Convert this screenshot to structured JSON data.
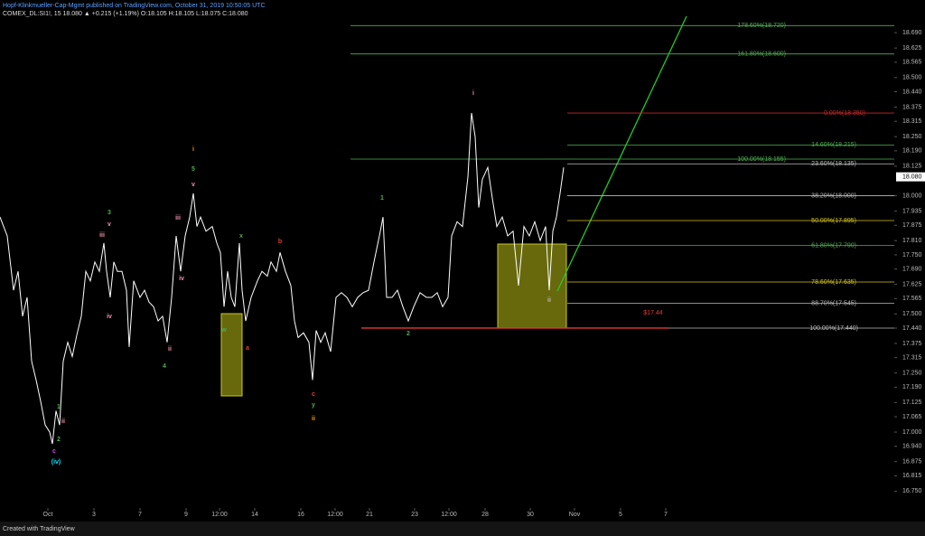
{
  "chart_data": {
    "type": "line",
    "title": "Hopf-Klinkmueller-Cap-Mgmt published on TradingView.com, October 31, 2019 10:50:05 UTC",
    "subtitle": "COMEX_DL:SI1!, 15  18.080 ▲ +0.215 (+1.19%)  O:18.105  H:18.105  L:18.075  C:18.080",
    "credit": "Created with TradingView",
    "xlim": [
      0,
      99
    ],
    "ylim": [
      16.61,
      18.79
    ],
    "xticks": [
      {
        "value": 5.3,
        "label": "Oct"
      },
      {
        "value": 10.4,
        "label": "3"
      },
      {
        "value": 15.5,
        "label": "7"
      },
      {
        "value": 20.6,
        "label": "9"
      },
      {
        "value": 24.3,
        "label": "12:00"
      },
      {
        "value": 28.2,
        "label": "14"
      },
      {
        "value": 33.3,
        "label": "16"
      },
      {
        "value": 37.1,
        "label": "12:00"
      },
      {
        "value": 40.9,
        "label": "21"
      },
      {
        "value": 45.9,
        "label": "23"
      },
      {
        "value": 49.7,
        "label": "12:00"
      },
      {
        "value": 53.7,
        "label": "28"
      },
      {
        "value": 58.7,
        "label": "30"
      },
      {
        "value": 63.6,
        "label": "Nov"
      },
      {
        "value": 68.7,
        "label": "5"
      },
      {
        "value": 73.7,
        "label": "7"
      }
    ],
    "yticks": [
      {
        "value": 18.69,
        "label": "18.690"
      },
      {
        "value": 18.625,
        "label": "18.625"
      },
      {
        "value": 18.565,
        "label": "18.565"
      },
      {
        "value": 18.5,
        "label": "18.500"
      },
      {
        "value": 18.44,
        "label": "18.440"
      },
      {
        "value": 18.375,
        "label": "18.375"
      },
      {
        "value": 18.315,
        "label": "18.315"
      },
      {
        "value": 18.25,
        "label": "18.250"
      },
      {
        "value": 18.19,
        "label": "18.190"
      },
      {
        "value": 18.125,
        "label": "18.125"
      },
      {
        "value": 18.0,
        "label": "18.000"
      },
      {
        "value": 17.935,
        "label": "17.935"
      },
      {
        "value": 17.875,
        "label": "17.875"
      },
      {
        "value": 17.81,
        "label": "17.810"
      },
      {
        "value": 17.75,
        "label": "17.750"
      },
      {
        "value": 17.69,
        "label": "17.690"
      },
      {
        "value": 17.625,
        "label": "17.625"
      },
      {
        "value": 17.565,
        "label": "17.565"
      },
      {
        "value": 17.5,
        "label": "17.500"
      },
      {
        "value": 17.44,
        "label": "17.440"
      },
      {
        "value": 17.375,
        "label": "17.375"
      },
      {
        "value": 17.315,
        "label": "17.315"
      },
      {
        "value": 17.25,
        "label": "17.250"
      },
      {
        "value": 17.19,
        "label": "17.190"
      },
      {
        "value": 17.125,
        "label": "17.125"
      },
      {
        "value": 17.065,
        "label": "17.065"
      },
      {
        "value": 17.0,
        "label": "17.000"
      },
      {
        "value": 16.94,
        "label": "16.940"
      },
      {
        "value": 16.875,
        "label": "16.875"
      },
      {
        "value": 16.815,
        "label": "16.815"
      },
      {
        "value": 16.75,
        "label": "16.750"
      }
    ],
    "last_price": {
      "value": 18.08,
      "label": "18.080"
    },
    "x": [
      0,
      0.8,
      1.5,
      2,
      2.5,
      3,
      3.5,
      4,
      4.5,
      5,
      5.5,
      5.8,
      6.2,
      6.6,
      7,
      7.5,
      8,
      8.5,
      9,
      9.5,
      10,
      10.5,
      11,
      11.5,
      11.8,
      12.2,
      12.6,
      13,
      13.5,
      14,
      14.3,
      14.8,
      15.5,
      16,
      16.5,
      17,
      17.5,
      18,
      18.5,
      19,
      19.5,
      20,
      20.5,
      21,
      21.4,
      21.8,
      22.2,
      22.8,
      23.5,
      24,
      24.4,
      24.8,
      25.2,
      25.6,
      26,
      26.5,
      26.8,
      27.2,
      27.8,
      28.5,
      29,
      29.6,
      30,
      30.6,
      31,
      31.6,
      32.2,
      32.6,
      33,
      33.6,
      34.2,
      34.6,
      35,
      35.5,
      36,
      36.6,
      37.2,
      37.8,
      38.4,
      39,
      39.6,
      40.2,
      40.8,
      41.4,
      42,
      42.4,
      42.8,
      43.4,
      44,
      44.6,
      45.2,
      45.8,
      46.5,
      47.2,
      47.8,
      48.4,
      49,
      49.6,
      50,
      50.6,
      51.2,
      51.8,
      52.2,
      52.6,
      53,
      53.4,
      54,
      54.5,
      55,
      55.6,
      56.2,
      56.8,
      57.4,
      58,
      58.6,
      59.2,
      59.8,
      60.4,
      60.8,
      61.2,
      61.6,
      62,
      62.4
    ],
    "series": [
      {
        "color": "#ffffff",
        "values": [
          17.91,
          17.83,
          17.6,
          17.68,
          17.49,
          17.57,
          17.3,
          17.22,
          17.13,
          17.03,
          17.0,
          16.95,
          17.09,
          17.03,
          17.3,
          17.38,
          17.32,
          17.41,
          17.49,
          17.68,
          17.64,
          17.72,
          17.68,
          17.8,
          17.68,
          17.57,
          17.72,
          17.68,
          17.68,
          17.6,
          17.36,
          17.64,
          17.57,
          17.6,
          17.55,
          17.53,
          17.47,
          17.49,
          17.38,
          17.57,
          17.83,
          17.68,
          17.83,
          17.91,
          18.01,
          17.87,
          17.91,
          17.85,
          17.87,
          17.8,
          17.76,
          17.53,
          17.68,
          17.57,
          17.53,
          17.8,
          17.6,
          17.47,
          17.57,
          17.64,
          17.68,
          17.66,
          17.72,
          17.68,
          17.76,
          17.68,
          17.62,
          17.47,
          17.4,
          17.42,
          17.38,
          17.22,
          17.43,
          17.38,
          17.42,
          17.34,
          17.57,
          17.59,
          17.57,
          17.53,
          17.57,
          17.59,
          17.6,
          17.72,
          17.83,
          17.91,
          17.57,
          17.57,
          17.6,
          17.53,
          17.47,
          17.53,
          17.59,
          17.57,
          17.57,
          17.59,
          17.53,
          17.57,
          17.83,
          17.89,
          17.87,
          18.08,
          18.35,
          18.25,
          17.95,
          18.07,
          18.12,
          17.99,
          17.87,
          17.91,
          17.83,
          17.85,
          17.62,
          17.87,
          17.83,
          17.89,
          17.81,
          17.87,
          17.6,
          17.85,
          17.91,
          18.01,
          18.12
        ]
      }
    ],
    "fib_levels": [
      {
        "label": "178.60%(18.720)",
        "value": 18.72,
        "color": "#4caf50"
      },
      {
        "label": "161.80%(18.600)",
        "value": 18.6,
        "color": "#4caf50"
      },
      {
        "label": "0.00%(18.350)",
        "value": 18.35,
        "color": "#c62828"
      },
      {
        "label": "14.60%(18.215)",
        "value": 18.215,
        "color": "#4caf50"
      },
      {
        "label": "100.00%(18.155)",
        "value": 18.155,
        "color": "#4caf50"
      },
      {
        "label": "23.60%(18.135)",
        "value": 18.135,
        "color": "#bbbbbb"
      },
      {
        "label": "38.20%(18.000)",
        "value": 18.0,
        "color": "#bbbbbb"
      },
      {
        "label": "50.00%(17.895)",
        "value": 17.895,
        "color": "#d4c21c"
      },
      {
        "label": "61.80%(17.790)",
        "value": 17.79,
        "color": "#4caf50"
      },
      {
        "label": "78.60%(17.635)",
        "value": 17.635,
        "color": "#d4c21c"
      },
      {
        "label": "88.70%(17.545)",
        "value": 17.545,
        "color": "#bbbbbb"
      },
      {
        "label": "100.00%(17.440)",
        "value": 17.44,
        "color": "#bbbbbb"
      }
    ],
    "support": {
      "value": 17.44,
      "label": "$17.44",
      "color": "#e53935"
    },
    "wave_labels": [
      {
        "text": "i",
        "color": "#ff9800"
      },
      {
        "text": "5",
        "color": "#4caf50"
      },
      {
        "text": "v",
        "color": "#f48fb1"
      },
      {
        "text": "3",
        "color": "#4caf50"
      },
      {
        "text": "v",
        "color": "#f48fb1"
      },
      {
        "text": "iii",
        "color": "#f48fb1"
      },
      {
        "text": "iv",
        "color": "#f48fb1"
      },
      {
        "text": "iii",
        "color": "#f48fb1"
      },
      {
        "text": "iv",
        "color": "#f48fb1"
      },
      {
        "text": "ii",
        "color": "#f48fb1"
      },
      {
        "text": "4",
        "color": "#4caf50"
      },
      {
        "text": "x",
        "color": "#4caf50"
      },
      {
        "text": "b",
        "color": "#e53935"
      },
      {
        "text": "w",
        "color": "#4caf50"
      },
      {
        "text": "a",
        "color": "#e53935"
      },
      {
        "text": "c",
        "color": "#e53935"
      },
      {
        "text": "y",
        "color": "#4caf50"
      },
      {
        "text": "ii",
        "color": "#ff9800"
      },
      {
        "text": "1",
        "color": "#4caf50"
      },
      {
        "text": "2",
        "color": "#4caf50"
      },
      {
        "text": "i",
        "color": "#f48fb1"
      },
      {
        "text": "ii",
        "color": "#bbbbbb"
      },
      {
        "text": "1",
        "color": "#4caf50"
      },
      {
        "text": "ii",
        "color": "#f48fb1"
      },
      {
        "text": "2",
        "color": "#4caf50"
      },
      {
        "text": "c",
        "color": "#e040fb"
      },
      {
        "text": "(iv)",
        "color": "#00e5ff"
      }
    ]
  }
}
